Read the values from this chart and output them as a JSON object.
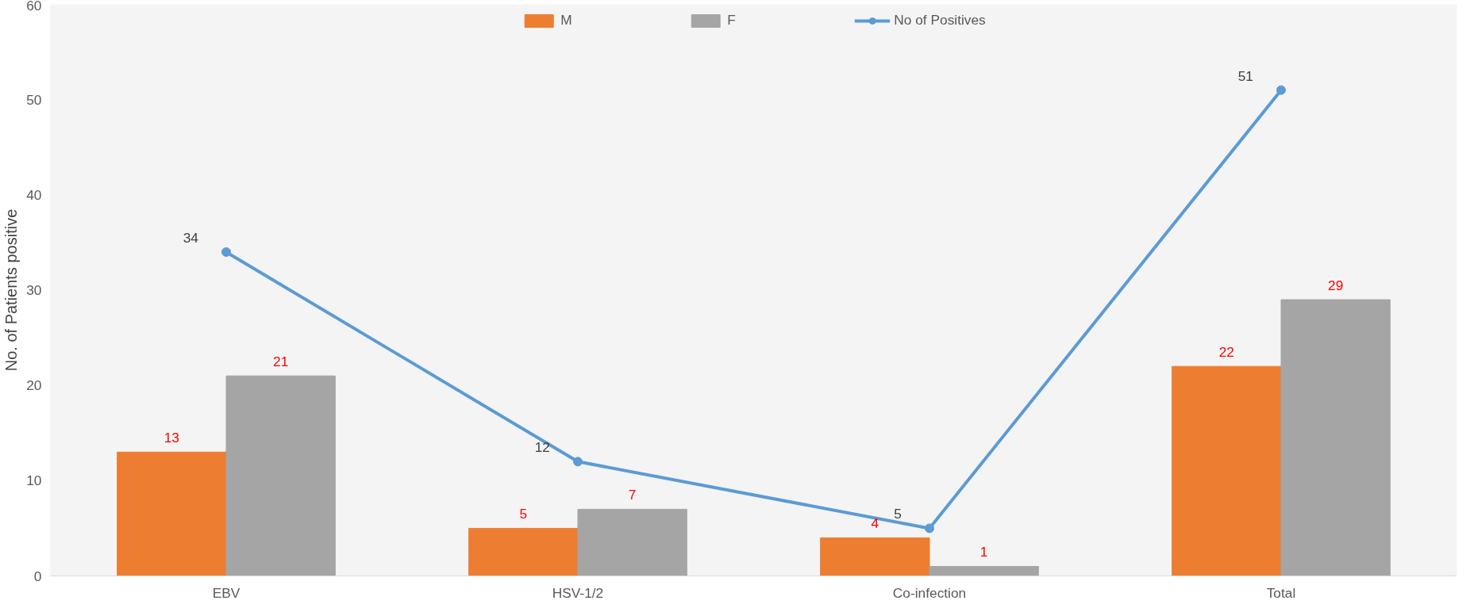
{
  "chart_data": {
    "type": "bar",
    "ylabel": "No. of Patients positive",
    "categories": [
      "EBV",
      "HSV-1/2",
      "Co-infection",
      "Total"
    ],
    "series": [
      {
        "name": "M",
        "color": "#ed7d31",
        "values": [
          13,
          5,
          4,
          22
        ]
      },
      {
        "name": "F",
        "color": "#a5a5a5",
        "values": [
          21,
          7,
          1,
          29
        ]
      },
      {
        "name": "No of Positives",
        "type": "line",
        "color": "#5b9bd5",
        "values": [
          34,
          12,
          5,
          51
        ],
        "marker": "circle"
      }
    ],
    "ylim": [
      0,
      60
    ],
    "yticks": [
      0,
      10,
      20,
      30,
      40,
      50,
      60
    ],
    "grid": false,
    "legend": "top",
    "data_labels": true
  }
}
